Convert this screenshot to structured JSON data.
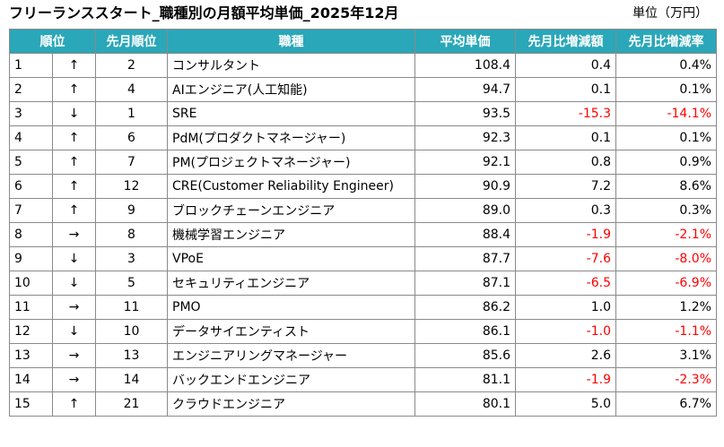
{
  "title": "フリーランススタート_職種別の月額平均単価_2025年12月",
  "unit": "単位（万円）",
  "colors": {
    "header_bg": "#2aa7b8",
    "header_text": "#ffffff",
    "negative": "#ff0000"
  },
  "headers": [
    "順位",
    "先月順位",
    "職種",
    "平均単価",
    "先月比増減額",
    "先月比増減率"
  ],
  "rows": [
    {
      "rank": "1",
      "arrow": "↑",
      "prev": "2",
      "job": "コンサルタント",
      "avg": "108.4",
      "diff": "0.4",
      "rate": "0.4%",
      "negative": false
    },
    {
      "rank": "2",
      "arrow": "↑",
      "prev": "4",
      "job": "AIエンジニア(人工知能)",
      "avg": "94.7",
      "diff": "0.1",
      "rate": "0.1%",
      "negative": false
    },
    {
      "rank": "3",
      "arrow": "↓",
      "prev": "1",
      "job": "SRE",
      "avg": "93.5",
      "diff": "-15.3",
      "rate": "-14.1%",
      "negative": true
    },
    {
      "rank": "4",
      "arrow": "↑",
      "prev": "6",
      "job": "PdM(プロダクトマネージャー)",
      "avg": "92.3",
      "diff": "0.1",
      "rate": "0.1%",
      "negative": false
    },
    {
      "rank": "5",
      "arrow": "↑",
      "prev": "7",
      "job": "PM(プロジェクトマネージャー)",
      "avg": "92.1",
      "diff": "0.8",
      "rate": "0.9%",
      "negative": false
    },
    {
      "rank": "6",
      "arrow": "↑",
      "prev": "12",
      "job": "CRE(Customer Reliability Engineer)",
      "avg": "90.9",
      "diff": "7.2",
      "rate": "8.6%",
      "negative": false
    },
    {
      "rank": "7",
      "arrow": "↑",
      "prev": "9",
      "job": "ブロックチェーンエンジニア",
      "avg": "89.0",
      "diff": "0.3",
      "rate": "0.3%",
      "negative": false
    },
    {
      "rank": "8",
      "arrow": "→",
      "prev": "8",
      "job": "機械学習エンジニア",
      "avg": "88.4",
      "diff": "-1.9",
      "rate": "-2.1%",
      "negative": true
    },
    {
      "rank": "9",
      "arrow": "↓",
      "prev": "3",
      "job": "VPoE",
      "avg": "87.7",
      "diff": "-7.6",
      "rate": "-8.0%",
      "negative": true
    },
    {
      "rank": "10",
      "arrow": "↓",
      "prev": "5",
      "job": "セキュリティエンジニア",
      "avg": "87.1",
      "diff": "-6.5",
      "rate": "-6.9%",
      "negative": true
    },
    {
      "rank": "11",
      "arrow": "→",
      "prev": "11",
      "job": "PMO",
      "avg": "86.2",
      "diff": "1.0",
      "rate": "1.2%",
      "negative": false
    },
    {
      "rank": "12",
      "arrow": "↓",
      "prev": "10",
      "job": "データサイエンティスト",
      "avg": "86.1",
      "diff": "-1.0",
      "rate": "-1.1%",
      "negative": true
    },
    {
      "rank": "13",
      "arrow": "→",
      "prev": "13",
      "job": "エンジニアリングマネージャー",
      "avg": "85.6",
      "diff": "2.6",
      "rate": "3.1%",
      "negative": false
    },
    {
      "rank": "14",
      "arrow": "→",
      "prev": "14",
      "job": "バックエンドエンジニア",
      "avg": "81.1",
      "diff": "-1.9",
      "rate": "-2.3%",
      "negative": true
    },
    {
      "rank": "15",
      "arrow": "↑",
      "prev": "21",
      "job": "クラウドエンジニア",
      "avg": "80.1",
      "diff": "5.0",
      "rate": "6.7%",
      "negative": false
    }
  ]
}
